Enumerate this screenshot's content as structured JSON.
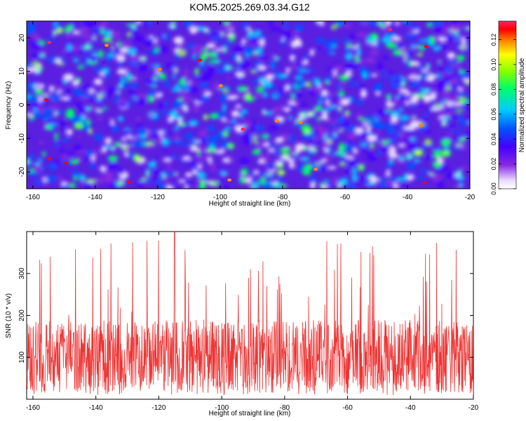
{
  "title": "KOM5.2025.269.03.34.G12",
  "colors": {
    "line": "#ee3333",
    "cmap": [
      "#ffffff",
      "#e8dcff",
      "#8a2be2",
      "#4400ff",
      "#0055ff",
      "#00ccff",
      "#00ff66",
      "#88ff00",
      "#ffff00",
      "#ff8800",
      "#ff0000",
      "#ff2266"
    ]
  },
  "chart_data": [
    {
      "type": "heatmap",
      "name": "spectrogram",
      "xlabel": "Height of straight line (km)",
      "ylabel": "Frequency (Hz)",
      "xlim": [
        -162,
        -20
      ],
      "ylim": [
        -25,
        25
      ],
      "xticks": [
        "-160",
        "-140",
        "-120",
        "-100",
        "-80",
        "-60",
        "-40",
        "-20"
      ],
      "xtick_values": [
        -160,
        -140,
        -120,
        -100,
        -80,
        -60,
        -40,
        -20
      ],
      "yticks": [
        "20",
        "10",
        "0",
        "-10",
        "-20"
      ],
      "ytick_values": [
        20,
        10,
        0,
        -10,
        -20
      ],
      "colorbar": {
        "label": "Normalized spectral amplitude",
        "range": [
          0,
          0.135
        ],
        "ticks": [
          "0.00",
          "0.02",
          "0.04",
          "0.06",
          "0.08",
          "0.10",
          "0.12"
        ],
        "tick_values": [
          0,
          0.02,
          0.04,
          0.06,
          0.08,
          0.1,
          0.12
        ]
      }
    },
    {
      "type": "line",
      "name": "snr",
      "xlabel": "Height of straight line (km)",
      "ylabel": "SNR (10 * v/v)",
      "xlim": [
        -162,
        -20
      ],
      "ylim": [
        0,
        400
      ],
      "xticks": [
        "-160",
        "-140",
        "-120",
        "-100",
        "-80",
        "-60",
        "-40",
        "-20"
      ],
      "xtick_values": [
        -160,
        -140,
        -120,
        -100,
        -80,
        -60,
        -40,
        -20
      ],
      "yticks": [
        "100",
        "200",
        "300"
      ],
      "ytick_values": [
        100,
        200,
        300
      ],
      "series_summary": {
        "mean": 100,
        "typical_max": 230,
        "peak": 400,
        "peak_x": -115
      }
    }
  ]
}
